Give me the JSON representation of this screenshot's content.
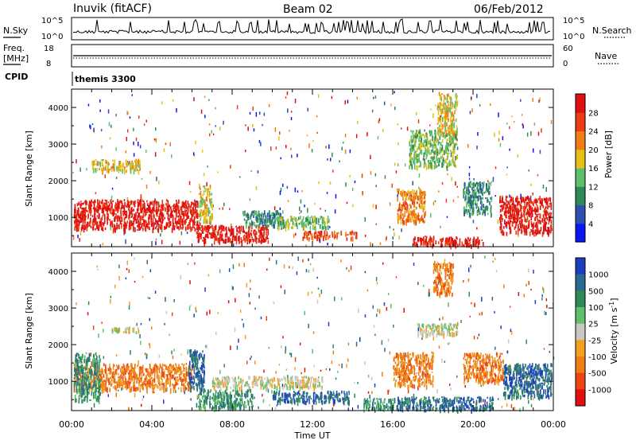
{
  "header": {
    "radar": "Inuvik (fitACF)",
    "beam": "Beam 02",
    "date": "06/Feb/2012"
  },
  "nsky_panel": {
    "left_label": "N.Sky",
    "right_label": "N.Search",
    "left_ticks": [
      "10^5",
      "10^0"
    ],
    "right_ticks": [
      "10^5",
      "10^0"
    ]
  },
  "freq_panel": {
    "left_label_1": "Freq.",
    "left_label_2": "[MHz]",
    "right_label": "Nave",
    "left_ticks": [
      "18",
      "8"
    ],
    "right_ticks": [
      "60",
      "0"
    ]
  },
  "cpid_panel": {
    "label": "CPID",
    "program": "themis 3300"
  },
  "chart_data": [
    {
      "type": "heatmap",
      "name": "power",
      "ylabel": "Slant Range [km]",
      "xlim": [
        0,
        24
      ],
      "ylim": [
        200,
        4500
      ],
      "ytick_labels": [
        "1000",
        "2000",
        "3000",
        "4000"
      ],
      "colorbar": {
        "label": "Power [dB]",
        "tick_labels": [
          "4",
          "8",
          "12",
          "16",
          "20",
          "24",
          "28"
        ],
        "colors": [
          "#0a18f0",
          "#2c4fb0",
          "#2f8a57",
          "#5ec06a",
          "#e6c017",
          "#f07d13",
          "#ea3d13",
          "#e01010"
        ]
      },
      "regions": [
        {
          "t0": 0.1,
          "t1": 6.4,
          "r0": 700,
          "r1": 1500,
          "level": 28
        },
        {
          "t0": 6.2,
          "t1": 9.8,
          "r0": 350,
          "r1": 800,
          "level": 28
        },
        {
          "t0": 6.3,
          "t1": 7.0,
          "r0": 900,
          "r1": 1900,
          "level": 16
        },
        {
          "t0": 8.5,
          "t1": 10.5,
          "r0": 800,
          "r1": 1200,
          "level": 8
        },
        {
          "t0": 10.2,
          "t1": 12.8,
          "r0": 750,
          "r1": 1050,
          "level": 12
        },
        {
          "t0": 11.5,
          "t1": 14.2,
          "r0": 450,
          "r1": 650,
          "level": 24
        },
        {
          "t0": 16.2,
          "t1": 17.6,
          "r0": 900,
          "r1": 1800,
          "level": 20
        },
        {
          "t0": 17.0,
          "t1": 20.5,
          "r0": 250,
          "r1": 500,
          "level": 28
        },
        {
          "t0": 19.5,
          "t1": 20.9,
          "r0": 1100,
          "r1": 2000,
          "level": 8
        },
        {
          "t0": 21.3,
          "t1": 23.9,
          "r0": 600,
          "r1": 1600,
          "level": 28
        },
        {
          "t0": 1.0,
          "t1": 3.4,
          "r0": 2300,
          "r1": 2600,
          "level": 16
        },
        {
          "t0": 16.8,
          "t1": 19.2,
          "r0": 2400,
          "r1": 3400,
          "level": 12
        },
        {
          "t0": 18.2,
          "t1": 19.2,
          "r0": 3300,
          "r1": 4400,
          "level": 16
        }
      ]
    },
    {
      "type": "heatmap",
      "name": "velocity",
      "ylabel": "Slant Range [km]",
      "xlabel": "Time UT",
      "xlim": [
        0,
        24
      ],
      "ylim": [
        200,
        4500
      ],
      "xtick_labels": [
        "00:00",
        "04:00",
        "08:00",
        "12:00",
        "16:00",
        "20:00",
        "00:00"
      ],
      "ytick_labels": [
        "1000",
        "2000",
        "3000",
        "4000"
      ],
      "colorbar": {
        "label": "Velocity [m s^-1]",
        "tick_labels": [
          "1000",
          "500",
          "100",
          "25",
          "-25",
          "-100",
          "-500",
          "-1000"
        ],
        "colors": [
          "#1d3fbf",
          "#2a6a8e",
          "#2f8a57",
          "#5ec06a",
          "#c8c8c0",
          "#f2a020",
          "#f07d13",
          "#ea4613",
          "#e01010"
        ]
      },
      "regions": [
        {
          "t0": 0.1,
          "t1": 6.0,
          "r0": 800,
          "r1": 1500,
          "level": -500
        },
        {
          "t0": 0.1,
          "t1": 1.4,
          "r0": 500,
          "r1": 1800,
          "level": 100
        },
        {
          "t0": 5.8,
          "t1": 6.6,
          "r0": 800,
          "r1": 1900,
          "level": 500
        },
        {
          "t0": 6.3,
          "t1": 9.0,
          "r0": 300,
          "r1": 800,
          "level": 100
        },
        {
          "t0": 7.0,
          "t1": 12.5,
          "r0": 850,
          "r1": 1150,
          "level": 0
        },
        {
          "t0": 10.0,
          "t1": 13.8,
          "r0": 450,
          "r1": 750,
          "level": 500
        },
        {
          "t0": 14.5,
          "t1": 16.2,
          "r0": 250,
          "r1": 550,
          "level": 100
        },
        {
          "t0": 16.0,
          "t1": 18.0,
          "r0": 900,
          "r1": 1800,
          "level": -500
        },
        {
          "t0": 16.2,
          "t1": 21.0,
          "r0": 250,
          "r1": 600,
          "level": 500
        },
        {
          "t0": 19.5,
          "t1": 21.5,
          "r0": 1000,
          "r1": 1800,
          "level": -500
        },
        {
          "t0": 21.5,
          "t1": 23.9,
          "r0": 600,
          "r1": 1500,
          "level": 500
        },
        {
          "t0": 17.2,
          "t1": 19.2,
          "r0": 2300,
          "r1": 2600,
          "level": 0
        },
        {
          "t0": 18.0,
          "t1": 19.0,
          "r0": 3400,
          "r1": 4300,
          "level": -500
        },
        {
          "t0": 2.0,
          "t1": 3.4,
          "r0": 2350,
          "r1": 2500,
          "level": 0
        }
      ]
    }
  ]
}
